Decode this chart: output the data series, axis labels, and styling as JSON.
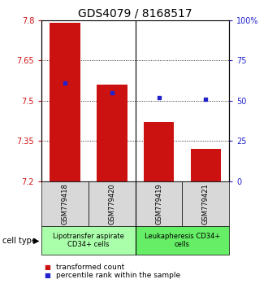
{
  "title": "GDS4079 / 8168517",
  "samples": [
    "GSM779418",
    "GSM779420",
    "GSM779419",
    "GSM779421"
  ],
  "transformed_count": [
    7.79,
    7.56,
    7.42,
    7.32
  ],
  "percentile_rank": [
    61,
    55,
    52,
    51
  ],
  "ylim_left": [
    7.2,
    7.8
  ],
  "ylim_right": [
    0,
    100
  ],
  "yticks_left": [
    7.2,
    7.35,
    7.5,
    7.65,
    7.8
  ],
  "ytick_labels_left": [
    "7.2",
    "7.35",
    "7.5",
    "7.65",
    "7.8"
  ],
  "yticks_right": [
    0,
    25,
    50,
    75,
    100
  ],
  "ytick_labels_right": [
    "0",
    "25",
    "50",
    "75",
    "100%"
  ],
  "bar_color": "#cc1111",
  "square_color": "#2222cc",
  "bar_width": 0.65,
  "cell_type_groups": [
    {
      "label": "Lipotransfer aspirate\nCD34+ cells",
      "samples": [
        0,
        1
      ],
      "color": "#aaffaa"
    },
    {
      "label": "Leukapheresis CD34+\ncells",
      "samples": [
        2,
        3
      ],
      "color": "#66ee66"
    }
  ],
  "cell_type_label": "cell type",
  "legend_transformed": "transformed count",
  "legend_percentile": "percentile rank within the sample",
  "title_fontsize": 10,
  "tick_fontsize": 7,
  "legend_fontsize": 6.5,
  "sample_fontsize": 6,
  "cell_type_fontsize": 6,
  "gray_box_color": "#d8d8d8"
}
